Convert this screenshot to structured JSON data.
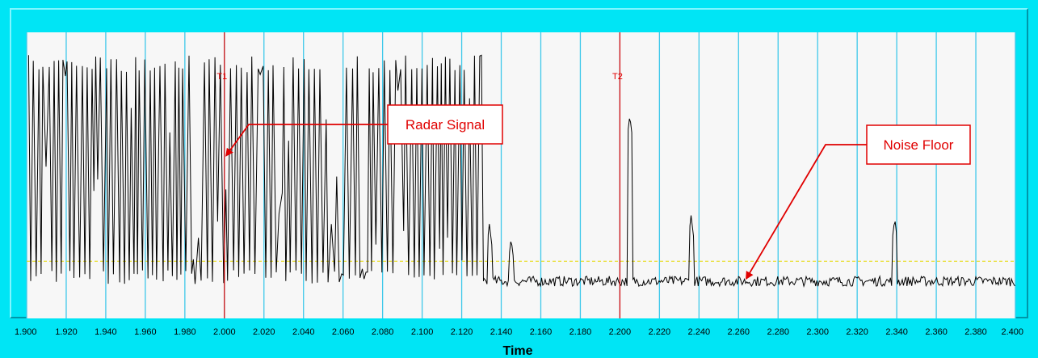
{
  "chart_data": {
    "type": "line",
    "xlabel": "Time",
    "ylabel": "",
    "xlim": [
      1.9,
      2.4
    ],
    "ylim": [
      0,
      1
    ],
    "x_ticks": [
      "1.900",
      "1.920",
      "1.940",
      "1.960",
      "1.980",
      "2.000",
      "2.020",
      "2.040",
      "2.060",
      "2.080",
      "2.100",
      "2.120",
      "2.140",
      "2.160",
      "2.180",
      "2.200",
      "2.220",
      "2.240",
      "2.260",
      "2.280",
      "2.300",
      "2.320",
      "2.340",
      "2.360",
      "2.380",
      "2.400"
    ],
    "grid": "vertical",
    "threshold": 0.2,
    "cursors": [
      {
        "label": "T1",
        "x": 2.0
      },
      {
        "label": "T2",
        "x": 2.2
      }
    ],
    "annotations": [
      {
        "text": "Radar Signal",
        "target_x": 2.001,
        "target_y": 0.57
      },
      {
        "text": "Noise Floor",
        "target_x": 2.264,
        "target_y": 0.14
      }
    ],
    "series": [
      {
        "values_note": "",
        "segments": [
          {
            "x_start": 1.901,
            "x_end": 2.13,
            "low": 0.12,
            "high": 0.92
          },
          {
            "x_start": 2.131,
            "x_end": 2.4,
            "baseline": 0.13
          }
        ],
        "peaks": [
          {
            "x": 2.134,
            "y": 0.33
          },
          {
            "x": 2.145,
            "y": 0.28
          },
          {
            "x": 2.205,
            "y": 0.71
          },
          {
            "x": 2.236,
            "y": 0.36
          },
          {
            "x": 2.339,
            "y": 0.35
          }
        ]
      }
    ],
    "colors": {
      "background": "#00e5f5",
      "plot_bg": "#f7f7f7",
      "grid": "#3ec8ea",
      "cursor": "#e00000",
      "signal": "#000000",
      "threshold": "#e6d800",
      "callout": "#e00000"
    }
  }
}
